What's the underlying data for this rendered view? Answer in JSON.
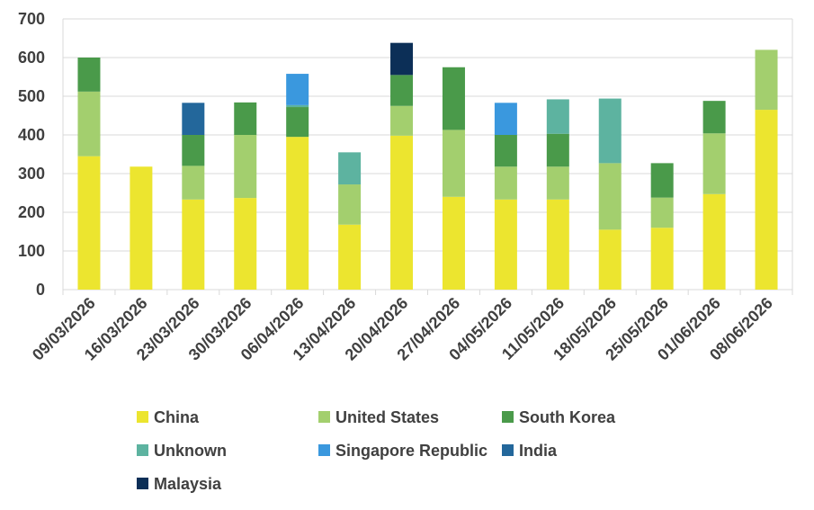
{
  "chart_data": {
    "type": "bar",
    "stacked": true,
    "categories": [
      "09/03/2026",
      "16/03/2026",
      "23/03/2026",
      "30/03/2026",
      "06/04/2026",
      "13/04/2026",
      "20/04/2026",
      "27/04/2026",
      "04/05/2026",
      "11/05/2026",
      "18/05/2026",
      "25/05/2026",
      "01/06/2026",
      "08/06/2026"
    ],
    "ylim": [
      0,
      700
    ],
    "yticks": [
      0,
      100,
      200,
      300,
      400,
      500,
      600,
      700
    ],
    "grid": true,
    "legend_position": "bottom",
    "series": [
      {
        "name": "China",
        "color": "#ECE52F",
        "values": [
          345,
          318,
          233,
          237,
          395,
          168,
          398,
          240,
          233,
          233,
          155,
          160,
          247,
          465
        ]
      },
      {
        "name": "United States",
        "color": "#A3CF6E",
        "values": [
          167,
          0,
          87,
          163,
          0,
          104,
          77,
          173,
          85,
          85,
          172,
          78,
          157,
          155
        ]
      },
      {
        "name": "South Korea",
        "color": "#4A9A4A",
        "values": [
          88,
          0,
          80,
          84,
          77,
          0,
          80,
          162,
          82,
          85,
          0,
          89,
          84,
          0
        ]
      },
      {
        "name": "Unknown",
        "color": "#5DB3A0",
        "values": [
          0,
          0,
          0,
          0,
          5,
          83,
          0,
          0,
          0,
          89,
          167,
          0,
          0,
          0
        ]
      },
      {
        "name": "Singapore Republic",
        "color": "#3A98DE",
        "values": [
          0,
          0,
          0,
          0,
          81,
          0,
          0,
          0,
          83,
          0,
          0,
          0,
          0,
          0
        ]
      },
      {
        "name": "India",
        "color": "#23679B",
        "values": [
          0,
          0,
          83,
          0,
          0,
          0,
          0,
          0,
          0,
          0,
          0,
          0,
          0,
          0
        ]
      },
      {
        "name": "Malaysia",
        "color": "#0C2F57",
        "values": [
          0,
          0,
          0,
          0,
          0,
          0,
          83,
          0,
          0,
          0,
          0,
          0,
          0,
          0
        ]
      }
    ]
  }
}
